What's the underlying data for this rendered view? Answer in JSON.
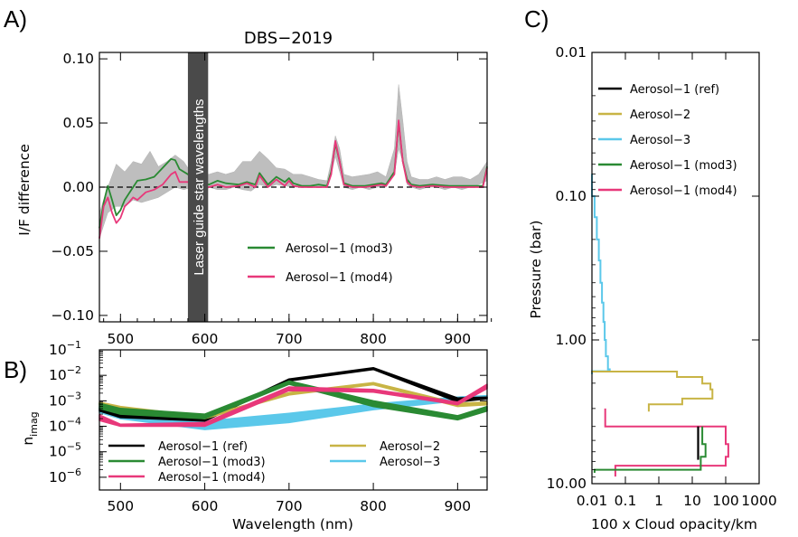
{
  "figure": {
    "letters": [
      "A)",
      "B)",
      "C)"
    ]
  },
  "colors": {
    "ref": "#000000",
    "aer2": "#c8b445",
    "aer3": "#5bc8ea",
    "mod3": "#2a8a33",
    "mod4": "#e8387a",
    "data_grey": "#b8b8b8",
    "laser_band": "#4a4a4a"
  },
  "chart_data": [
    {
      "id": "A",
      "type": "line",
      "title": "DBS−2019",
      "xlabel": "",
      "ylabel": "I/F difference",
      "xlim": [
        475,
        935
      ],
      "ylim": [
        -0.105,
        0.105
      ],
      "xticks": [
        500,
        600,
        700,
        800,
        900
      ],
      "xtick_labels": [
        "500",
        "600",
        "700",
        "800",
        "900"
      ],
      "yticks": [
        -0.1,
        -0.05,
        0.0,
        0.05,
        0.1
      ],
      "ytick_labels": [
        "−0.10",
        "−0.05",
        "0.00",
        "0.05",
        "0.10"
      ],
      "zero_line": true,
      "band": {
        "x": [
          580,
          604
        ],
        "label": "Laser guide star wavelengths"
      },
      "grey_range": {
        "x": [
          475,
          485,
          495,
          505,
          515,
          525,
          535,
          545,
          555,
          565,
          575,
          585,
          595,
          605,
          615,
          625,
          635,
          645,
          655,
          665,
          675,
          685,
          695,
          705,
          715,
          725,
          735,
          745,
          750,
          755,
          760,
          765,
          775,
          785,
          795,
          805,
          815,
          825,
          830,
          835,
          840,
          845,
          855,
          865,
          875,
          885,
          895,
          905,
          915,
          925,
          935
        ],
        "low": [
          -0.04,
          -0.02,
          -0.015,
          -0.015,
          -0.01,
          -0.012,
          -0.01,
          -0.008,
          -0.004,
          0.0,
          -0.002,
          0.0,
          0.0,
          0.0,
          -0.002,
          -0.002,
          0.0,
          -0.002,
          -0.003,
          0.002,
          0.0,
          0.002,
          0.001,
          0.0,
          0.0,
          0.0,
          0.0,
          0.0,
          0.01,
          0.024,
          0.012,
          0.0,
          -0.002,
          0.0,
          -0.002,
          0.0,
          0.0,
          0.01,
          0.03,
          0.02,
          0.002,
          0.0,
          -0.002,
          0.0,
          0.0,
          -0.002,
          0.0,
          -0.002,
          0.0,
          0.002,
          0.005
        ],
        "high": [
          -0.02,
          0.0,
          0.018,
          0.012,
          0.02,
          0.018,
          0.028,
          0.016,
          0.02,
          0.025,
          0.02,
          0.01,
          0.01,
          0.01,
          0.012,
          0.01,
          0.012,
          0.02,
          0.02,
          0.028,
          0.022,
          0.015,
          0.014,
          0.01,
          0.01,
          0.008,
          0.006,
          0.005,
          0.02,
          0.04,
          0.03,
          0.01,
          0.008,
          0.009,
          0.01,
          0.012,
          0.008,
          0.03,
          0.08,
          0.052,
          0.02,
          0.008,
          0.006,
          0.006,
          0.008,
          0.006,
          0.008,
          0.008,
          0.006,
          0.01,
          0.02
        ]
      },
      "legend_position": "lower-right",
      "series": [
        {
          "name": "Aerosol−1 (mod3)",
          "key": "mod3",
          "x": [
            475,
            480,
            485,
            490,
            495,
            500,
            505,
            510,
            515,
            520,
            530,
            540,
            550,
            560,
            565,
            570,
            580,
            590,
            600,
            605,
            615,
            625,
            640,
            650,
            660,
            665,
            675,
            685,
            695,
            700,
            705,
            715,
            725,
            735,
            745,
            750,
            755,
            760,
            765,
            775,
            790,
            800,
            810,
            815,
            825,
            830,
            835,
            840,
            845,
            855,
            870,
            890,
            905,
            920,
            930,
            935
          ],
          "y": [
            -0.032,
            -0.012,
            0.001,
            -0.01,
            -0.022,
            -0.018,
            -0.01,
            -0.005,
            0.0,
            0.005,
            0.006,
            0.008,
            0.015,
            0.022,
            0.021,
            0.014,
            0.01,
            0.006,
            0.003,
            0.002,
            0.005,
            0.003,
            0.002,
            0.004,
            0.002,
            0.011,
            0.002,
            0.008,
            0.004,
            0.007,
            0.003,
            0.001,
            0.001,
            0.002,
            0.001,
            0.012,
            0.034,
            0.02,
            0.003,
            0.001,
            0.001,
            0.002,
            0.003,
            0.002,
            0.012,
            0.05,
            0.02,
            0.006,
            0.002,
            0.001,
            0.002,
            0.001,
            0.001,
            0.001,
            0.001,
            0.016
          ]
        },
        {
          "name": "Aerosol−1 (mod4)",
          "key": "mod4",
          "x": [
            475,
            480,
            485,
            490,
            495,
            500,
            505,
            510,
            515,
            520,
            530,
            540,
            550,
            560,
            565,
            570,
            580,
            590,
            600,
            605,
            615,
            625,
            640,
            650,
            660,
            665,
            675,
            685,
            695,
            700,
            705,
            715,
            725,
            735,
            745,
            750,
            755,
            760,
            765,
            775,
            790,
            800,
            810,
            815,
            825,
            830,
            835,
            840,
            845,
            855,
            870,
            890,
            905,
            920,
            930,
            935
          ],
          "y": [
            -0.04,
            -0.015,
            -0.008,
            -0.02,
            -0.028,
            -0.024,
            -0.015,
            -0.012,
            -0.008,
            -0.01,
            -0.004,
            -0.002,
            0.002,
            0.01,
            0.012,
            0.004,
            0.004,
            0.0,
            -0.001,
            0.0,
            0.002,
            0.0,
            0.001,
            0.003,
            0.0,
            0.009,
            0.0,
            0.006,
            0.001,
            0.005,
            0.001,
            0.0,
            0.0,
            0.0,
            0.0,
            0.01,
            0.036,
            0.02,
            0.002,
            0.0,
            0.0,
            0.001,
            0.002,
            0.001,
            0.01,
            0.052,
            0.02,
            0.004,
            0.001,
            0.0,
            0.001,
            0.0,
            0.0,
            0.0,
            0.0,
            0.015
          ]
        }
      ]
    },
    {
      "id": "B",
      "type": "line",
      "title": "",
      "xlabel": "Wavelength (nm)",
      "ylabel": "n",
      "ylabel_sub": "imag",
      "xlim": [
        475,
        935
      ],
      "ylim_log10": [
        -6.5,
        -1
      ],
      "yscale": "log",
      "xticks": [
        500,
        600,
        700,
        800,
        900
      ],
      "xtick_labels": [
        "500",
        "600",
        "700",
        "800",
        "900"
      ],
      "yticks_exp": [
        -6,
        -5,
        -4,
        -3,
        -2,
        -1
      ],
      "ytick_base": "10",
      "legend_position": "lower-center",
      "series": [
        {
          "name": "Aerosol−1 (ref)",
          "key": "ref",
          "x": [
            475,
            500,
            600,
            700,
            800,
            900,
            935
          ],
          "low": [
            0.0004,
            0.00022,
            0.00016,
            0.006,
            0.017,
            0.0009,
            0.0012
          ],
          "high": [
            0.0005,
            0.00028,
            0.0002,
            0.0072,
            0.02,
            0.0013,
            0.0014
          ]
        },
        {
          "name": "Aerosol−1 (mod3)",
          "key": "mod3",
          "x": [
            475,
            500,
            600,
            700,
            800,
            900,
            935
          ],
          "low": [
            0.0005,
            0.0003,
            0.0002,
            0.0045,
            0.0006,
            0.00018,
            0.0004
          ],
          "high": [
            0.0008,
            0.0005,
            0.0003,
            0.006,
            0.001,
            0.00026,
            0.0006
          ]
        },
        {
          "name": "Aerosol−1 (mod4)",
          "key": "mod4",
          "x": [
            475,
            500,
            600,
            700,
            800,
            900,
            935
          ],
          "low": [
            0.00017,
            0.0001,
            0.0001,
            0.0025,
            0.0022,
            0.0007,
            0.003
          ],
          "high": [
            0.00028,
            0.00012,
            0.00014,
            0.0035,
            0.0028,
            0.0009,
            0.0045
          ]
        },
        {
          "name": "Aerosol−2",
          "key": "aer2",
          "x": [
            475,
            500,
            600,
            700,
            800,
            900,
            935
          ],
          "low": [
            0.0007,
            0.0005,
            0.0002,
            0.0017,
            0.0043,
            0.0006,
            0.0007
          ],
          "high": [
            0.0009,
            0.0006,
            0.00024,
            0.0021,
            0.0052,
            0.0008,
            0.0009
          ]
        },
        {
          "name": "Aerosol−3",
          "key": "aer3",
          "x": [
            475,
            500,
            600,
            700,
            800,
            900,
            935
          ],
          "low": [
            0.00035,
            0.0002,
            7.5e-05,
            0.00014,
            0.00045,
            0.001,
            0.0012
          ],
          "high": [
            0.0006,
            0.00035,
            0.00016,
            0.00032,
            0.00075,
            0.0014,
            0.0016
          ]
        }
      ]
    },
    {
      "id": "C",
      "type": "line",
      "title": "",
      "xlabel": "100 x Cloud opacity/km",
      "ylabel": "Pressure (bar)",
      "xscale": "log",
      "yscale": "log",
      "xlim": [
        0.01,
        1000
      ],
      "ylim": [
        0.01,
        10
      ],
      "xticks": [
        0.01,
        0.1,
        1,
        10,
        100,
        1000
      ],
      "xtick_labels": [
        "0.01",
        "0.1",
        "1",
        "10",
        "100",
        "1000"
      ],
      "yticks": [
        0.01,
        0.1,
        1,
        10
      ],
      "ytick_labels": [
        "0.01",
        "0.10",
        "1.00",
        "10.00"
      ],
      "legend_position": "upper-left",
      "legend": [
        {
          "name": "Aerosol−1 (ref)",
          "key": "ref"
        },
        {
          "name": "Aerosol−2",
          "key": "aer2"
        },
        {
          "name": "Aerosol−3",
          "key": "aer3"
        },
        {
          "name": "Aerosol−1 (mod3)",
          "key": "mod3"
        },
        {
          "name": "Aerosol−1 (mod4)",
          "key": "mod4"
        }
      ],
      "series": [
        {
          "name": "Aerosol−3",
          "key": "aer3",
          "p": [
            0.07,
            0.1,
            0.14,
            0.2,
            0.28,
            0.4,
            0.55,
            0.75,
            1.0,
            1.3,
            1.6,
            1.65
          ],
          "tau": [
            0.01,
            0.012,
            0.014,
            0.016,
            0.018,
            0.02,
            0.022,
            0.024,
            0.026,
            0.03,
            0.034,
            0.01
          ]
        },
        {
          "name": "Aerosol−2",
          "key": "aer2",
          "p": [
            1.65,
            1.66,
            1.8,
            1.81,
            2.0,
            2.01,
            2.2,
            2.21,
            2.55,
            2.56,
            2.8,
            2.81,
            3.0
          ],
          "tau": [
            0.01,
            3.5,
            3.5,
            20,
            20,
            35,
            35,
            40,
            40,
            5,
            5,
            0.5,
            0.5
          ]
        },
        {
          "name": "Aerosol−1 (ref)",
          "key": "ref",
          "p": [
            4.0,
            5.3,
            6.5
          ],
          "tau": [
            15,
            15,
            15
          ]
        },
        {
          "name": "Aerosol−1 (mod3)",
          "key": "mod3",
          "p": [
            4.0,
            5.3,
            6.5,
            8.0
          ],
          "tau": [
            20,
            25,
            18,
            0.012
          ]
        },
        {
          "name": "Aerosol−1 (mod4)",
          "key": "mod4",
          "p": [
            3.0,
            4.0,
            5.3,
            6.5,
            7.5,
            8.5
          ],
          "tau": [
            0.025,
            100,
            120,
            100,
            0.05,
            0.05
          ]
        }
      ]
    }
  ]
}
